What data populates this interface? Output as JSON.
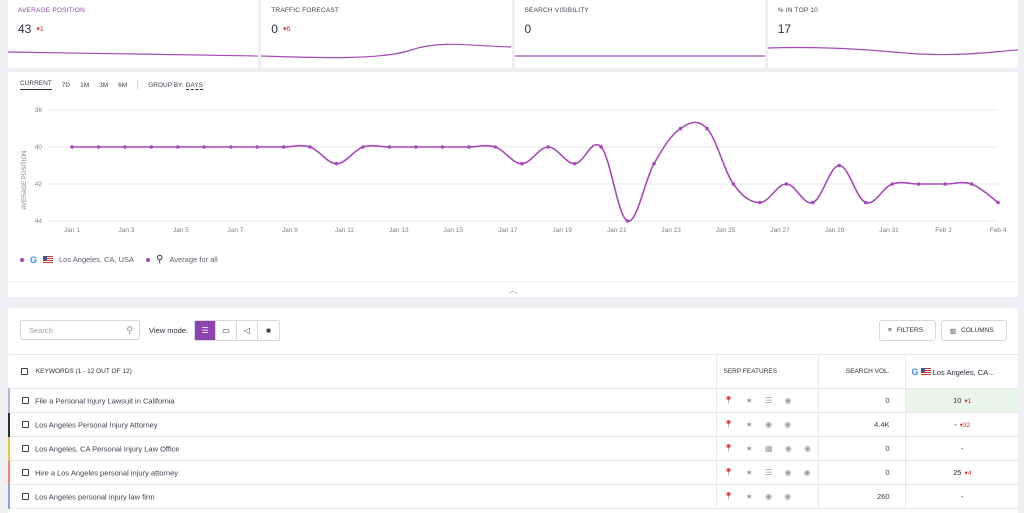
{
  "metrics": [
    {
      "title": "AVERAGE POSITION",
      "value": "43",
      "change": "1",
      "active": true
    },
    {
      "title": "TRAFFIC FORECAST",
      "value": "0",
      "change": "6",
      "active": false
    },
    {
      "title": "SEARCH VISIBILITY",
      "value": "0",
      "change": "",
      "active": false
    },
    {
      "title": "% IN TOP 10",
      "value": "17",
      "change": "",
      "active": false
    }
  ],
  "ranges": {
    "current": "CURRENT",
    "options": [
      "7D",
      "1M",
      "3M",
      "6M"
    ],
    "group_by_label": "GROUP BY:",
    "group_by_value": "DAYS"
  },
  "chart_data": {
    "type": "line",
    "ylabel": "AVERAGE POSITION",
    "y_inverted": true,
    "ylim": [
      38,
      44
    ],
    "y_ticks": [
      "38",
      "40",
      "42",
      "44"
    ],
    "x_ticks": [
      "Jan 1",
      "Jan 3",
      "Jan 5",
      "Jan 7",
      "Jan 9",
      "Jan 11",
      "Jan 13",
      "Jan 15",
      "Jan 17",
      "Jan 19",
      "Jan 21",
      "Jan 23",
      "Jan 25",
      "Jan 27",
      "Jan 29",
      "Jan 31",
      "Feb 2",
      "Feb 4"
    ],
    "series": [
      {
        "name": "Los Angeles, CA, USA",
        "values": [
          40,
          40,
          40,
          40,
          40,
          40,
          40,
          40,
          40,
          40,
          40.9,
          40,
          40,
          40,
          40,
          40,
          40,
          40.9,
          40,
          40.9,
          40,
          44,
          40.9,
          39,
          39,
          42,
          43,
          42,
          43,
          41,
          43,
          42,
          42,
          42,
          42,
          43
        ]
      }
    ],
    "legend": [
      {
        "label": "Los Angeles, CA, USA"
      },
      {
        "label": "Average for all"
      }
    ],
    "colors": {
      "line": "#a748b8",
      "grid": "#e6e8ec"
    }
  },
  "table": {
    "search_placeholder": "Search",
    "view_mode_label": "View mode:",
    "filters_label": "FILTERS",
    "columns_label": "COLUMNS",
    "headers": {
      "keywords": "KEYWORDS (1 - 12 OUT OF 12)",
      "serp": "SERP FEATURES",
      "volume": "SEARCH VOL.",
      "location": "Los Angeles, CA..."
    },
    "rows": [
      {
        "keyword": "File a Personal Injury Lawsuit in California",
        "serp": "📍 ★ ☰ ◉",
        "volume": "0",
        "position": "10",
        "change": "1",
        "best": true,
        "accent": "#b0b6d8"
      },
      {
        "keyword": "Los Angeles Personal Injury Attorney",
        "serp": "📍 ★ ◉ ◉",
        "volume": "4.4K",
        "position": "-",
        "change": "32",
        "best": false,
        "accent": "#2b2f3a"
      },
      {
        "keyword": "Los Angeles, CA Personal Injury Law Office",
        "serp": "📍 ★ ▦ ◉ ◉",
        "volume": "0",
        "position": "-",
        "change": "",
        "best": false,
        "accent": "#e8c04a"
      },
      {
        "keyword": "Hire a Los Angeles personal injury attorney",
        "serp": "📍 ★ ☰ ◉ ◉",
        "volume": "0",
        "position": "25",
        "change": "4",
        "best": false,
        "accent": "#f08080"
      },
      {
        "keyword": "Los Angeles personal injury law firm",
        "serp": "📍 ★ ◉ ◉",
        "volume": "260",
        "position": "-",
        "change": "",
        "best": false,
        "accent": "#7fa7e0"
      }
    ]
  }
}
